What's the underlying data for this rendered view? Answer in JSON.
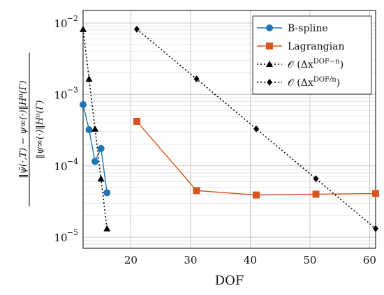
{
  "chart_data": {
    "type": "line",
    "title": "",
    "xlabel": "DOF",
    "ylabel_lines": [
      "‖ψ̃(·,T) − ψ∞(·)‖H⁰(Γ)",
      "‖ψ∞(·)‖H⁰(Γ)"
    ],
    "xlim": [
      12,
      61
    ],
    "ylim": [
      7e-06,
      0.015
    ],
    "yscale": "log",
    "grid": true,
    "legend_position": "top-right",
    "xticks": [
      20,
      30,
      40,
      50,
      60
    ],
    "xtick_labels": [
      "20",
      "30",
      "40",
      "50",
      "60"
    ],
    "yticks": [
      1e-05,
      0.0001,
      0.001,
      0.01
    ],
    "ytick_labels": [
      "10",
      "10",
      "10",
      "10"
    ],
    "ytick_exponents": [
      "−5",
      "−4",
      "−3",
      "−2"
    ],
    "series": [
      {
        "name": "B-spline",
        "color": "#1f77b4",
        "marker": "circle",
        "line": "solid",
        "x": [
          12,
          13,
          14,
          15,
          16
        ],
        "y": [
          0.00072,
          0.00032,
          0.000115,
          0.000175,
          4.2e-05
        ]
      },
      {
        "name": "Lagrangian",
        "color": "#d9531e",
        "marker": "square",
        "line": "solid",
        "x": [
          21,
          31,
          41,
          51,
          61
        ],
        "y": [
          0.00042,
          4.5e-05,
          3.9e-05,
          4e-05,
          4.1e-05
        ]
      },
      {
        "name": "O (Δx^(DOF−n))",
        "color": "#000000",
        "marker": "triangle",
        "line": "dotted",
        "x": [
          12,
          13,
          14,
          15,
          16
        ],
        "y": [
          0.0082,
          0.00165,
          0.00033,
          6.6e-05,
          1.32e-05
        ]
      },
      {
        "name": "O (Δx^(DOF/n))",
        "color": "#000000",
        "marker": "diamond",
        "line": "dotted",
        "x": [
          21,
          31,
          41,
          51,
          61
        ],
        "y": [
          0.0082,
          0.00165,
          0.00033,
          6.6e-05,
          1.32e-05
        ]
      }
    ],
    "legend_labels": [
      {
        "pre": "B-spline"
      },
      {
        "pre": "Lagrangian"
      },
      {
        "pre": "𝒪 (Δx",
        "sup": "DOF−n",
        "post": ")"
      },
      {
        "pre": "𝒪 (Δx",
        "sup": "DOF/n",
        "post": ")"
      }
    ]
  }
}
